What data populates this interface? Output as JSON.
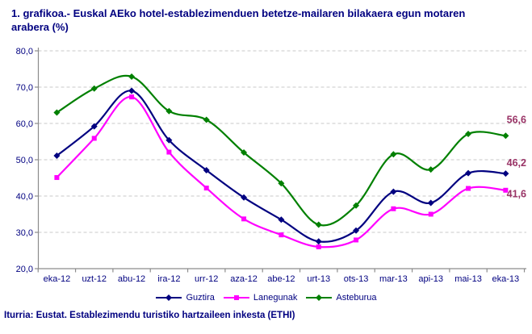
{
  "title": "1. grafikoa.- Euskal AEko hotel-establezimenduen betetze-mailaren bilakaera egun motaren arabera (%)",
  "footer": {
    "source": "Iturria: Eustat. Establezimendu turistiko hartzaileen inkesta (ETHI)"
  },
  "colors": {
    "title_text": "#000080",
    "axis_text": "#000080",
    "data_label": "#993366",
    "grid_line": "#c9c9c9",
    "axis_line": "#8c8c8c"
  },
  "chart_data": {
    "type": "line",
    "title": "1. grafikoa.- Euskal AEko hotel-establezimenduen betetze-mailaren bilakaera egun motaren arabera (%)",
    "categories": [
      "eka-12",
      "uzt-12",
      "abu-12",
      "ira-12",
      "urr-12",
      "aza-12",
      "abe-12",
      "urt-13",
      "ots-13",
      "mar-13",
      "api-13",
      "mai-13",
      "eka-13"
    ],
    "series": [
      {
        "name": "Guztira",
        "color": "#000080",
        "marker": "diamond",
        "values": [
          51.1,
          59.2,
          69.0,
          55.4,
          47.1,
          39.6,
          33.5,
          27.5,
          30.5,
          41.2,
          38.1,
          46.3,
          46.2
        ],
        "end_label": "46,2"
      },
      {
        "name": "Lanegunak",
        "color": "#ff00ff",
        "marker": "square",
        "values": [
          45.1,
          55.9,
          67.3,
          52.1,
          42.2,
          33.7,
          29.3,
          26.0,
          27.9,
          36.5,
          35.0,
          42.1,
          41.6
        ],
        "end_label": "41,6"
      },
      {
        "name": "Asteburua",
        "color": "#008000",
        "marker": "diamond",
        "values": [
          63.0,
          69.6,
          72.9,
          63.4,
          61.0,
          52.0,
          43.5,
          32.1,
          37.4,
          51.5,
          47.3,
          57.1,
          56.6
        ],
        "end_label": "56,6"
      }
    ],
    "ylim": [
      20,
      80
    ],
    "y_ticks": [
      80,
      70,
      60,
      50,
      40,
      30,
      20
    ],
    "y_tick_labels": [
      "80,0",
      "70,0",
      "60,0",
      "50,0",
      "40,0",
      "30,0",
      "20,0"
    ],
    "grid": "horizontal-dashed",
    "legend_position": "bottom",
    "smoothed_lines": true
  }
}
